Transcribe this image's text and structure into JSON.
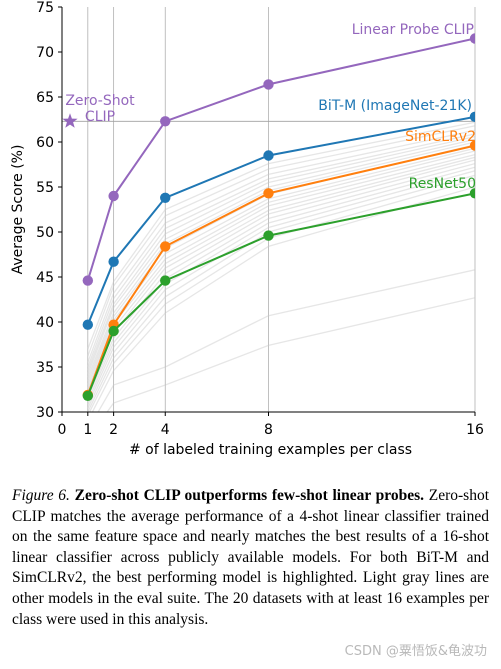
{
  "chart_data": {
    "type": "line",
    "xlabel": "# of labeled training examples per class",
    "ylabel": "Average Score (%)",
    "ylim": [
      30,
      75
    ],
    "xlim": [
      0,
      16
    ],
    "x_ticks": [
      0,
      1,
      2,
      4,
      8,
      16
    ],
    "y_ticks": [
      30,
      35,
      40,
      45,
      50,
      55,
      60,
      65,
      70,
      75
    ],
    "grid": "x-major-only",
    "x": [
      1,
      2,
      4,
      8,
      16
    ],
    "series": [
      {
        "name": "Linear Probe CLIP",
        "color": "#9467bd",
        "values": [
          44.6,
          54.0,
          62.3,
          66.4,
          71.5
        ]
      },
      {
        "name": "BiT-M (ImageNet-21K)",
        "color": "#1f77b4",
        "values": [
          39.7,
          46.7,
          53.8,
          58.5,
          62.8
        ]
      },
      {
        "name": "SimCLRv2",
        "color": "#ff7f0e",
        "values": [
          31.9,
          39.7,
          48.4,
          54.3,
          59.6
        ]
      },
      {
        "name": "ResNet50",
        "color": "#2ca02c",
        "values": [
          31.8,
          39.0,
          44.6,
          49.6,
          54.3
        ]
      }
    ],
    "zero_shot": {
      "label_line1": "Zero-Shot",
      "label_line2": "CLIP",
      "x": 0,
      "y": 62.3,
      "color": "#9467bd"
    },
    "background_lines": [
      [
        37.0,
        44.5,
        52.5,
        57.6,
        62.2
      ],
      [
        36.2,
        44.0,
        51.8,
        57.0,
        61.8
      ],
      [
        35.5,
        43.2,
        51.0,
        56.4,
        61.3
      ],
      [
        35.0,
        42.6,
        50.4,
        55.9,
        60.9
      ],
      [
        34.6,
        42.0,
        49.8,
        55.5,
        60.6
      ],
      [
        34.2,
        41.6,
        49.2,
        55.0,
        60.3
      ],
      [
        33.8,
        41.0,
        48.7,
        54.6,
        60.0
      ],
      [
        33.4,
        40.6,
        48.2,
        54.2,
        59.7
      ],
      [
        33.0,
        40.2,
        47.6,
        53.7,
        59.3
      ],
      [
        32.6,
        39.8,
        47.0,
        53.3,
        59.0
      ],
      [
        32.3,
        39.3,
        46.5,
        52.9,
        58.6
      ],
      [
        32.0,
        38.8,
        46.0,
        52.4,
        58.3
      ],
      [
        31.6,
        38.2,
        45.4,
        52.0,
        58.0
      ],
      [
        31.2,
        37.7,
        44.8,
        51.5,
        57.6
      ],
      [
        30.8,
        37.2,
        44.2,
        51.0,
        57.2
      ],
      [
        30.4,
        36.6,
        43.6,
        50.5,
        56.8
      ],
      [
        30.0,
        36.0,
        42.8,
        50.0,
        56.3
      ],
      [
        29.6,
        35.4,
        42.0,
        49.3,
        55.8
      ],
      [
        29.0,
        34.6,
        41.0,
        48.4,
        55.0
      ],
      [
        28.0,
        33.0,
        35.0,
        40.7,
        45.8
      ],
      [
        27.0,
        31.0,
        33.0,
        37.4,
        42.7
      ]
    ]
  },
  "caption": {
    "fig_label": "Figure 6.",
    "fig_title": "Zero-shot CLIP outperforms few-shot linear probes.",
    "body": "Zero-shot CLIP matches the average performance of a 4-shot linear classifier trained on the same feature space and nearly matches the best results of a 16-shot linear classifier across publicly available models. For both BiT-M and SimCLRv2, the best performing model is highlighted. Light gray lines are other models in the eval suite. The 20 datasets with at least 16 examples per class were used in this analysis."
  },
  "watermark": "CSDN @粟悟饭&龟波功"
}
